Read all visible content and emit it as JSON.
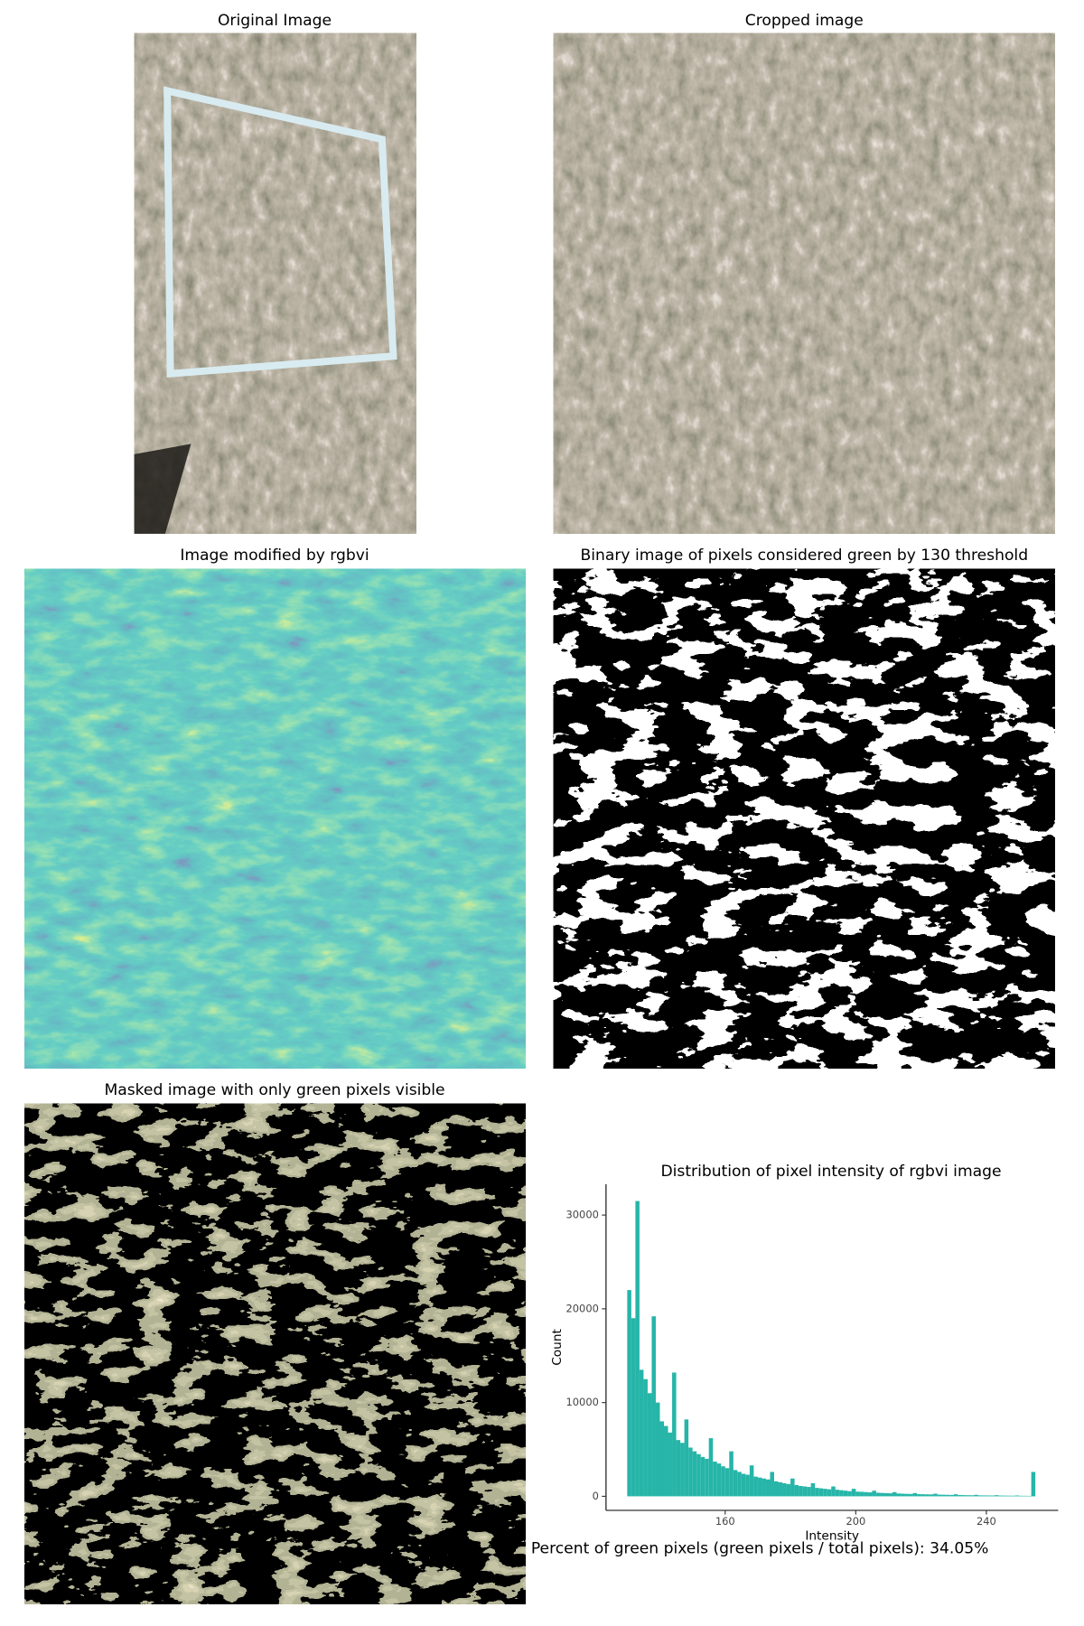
{
  "panels": [
    {
      "title": "Original Image"
    },
    {
      "title": "Cropped image"
    },
    {
      "title": "Image modified by rgbvi"
    },
    {
      "title": "Binary image of pixels considered green by 130 threshold"
    },
    {
      "title": "Masked image with only green pixels visible"
    }
  ],
  "chart_data": {
    "type": "histogram",
    "title": "Distribution of pixel intensity of rgbvi image",
    "x_label": "Intensity",
    "y_label": "Count",
    "color": "#26b5a8",
    "bins": [
      130,
      131.25,
      132.5,
      133.75,
      135,
      136.25,
      137.5,
      138.75,
      140,
      141.25,
      142.5,
      143.75,
      145,
      146.25,
      147.5,
      148.75,
      150,
      151.25,
      152.5,
      153.75,
      155,
      156.25,
      157.5,
      158.75,
      160,
      161.25,
      162.5,
      163.75,
      165,
      166.25,
      167.5,
      168.75,
      170,
      171.25,
      172.5,
      173.75,
      175,
      176.25,
      177.5,
      178.75,
      180,
      181.25,
      182.5,
      183.75,
      185,
      186.25,
      187.5,
      188.75,
      190,
      191.25,
      192.5,
      193.75,
      195,
      196.25,
      197.5,
      198.75,
      200,
      201.25,
      202.5,
      203.75,
      205,
      206.25,
      207.5,
      208.75,
      210,
      211.25,
      212.5,
      213.75,
      215,
      216.25,
      217.5,
      218.75,
      220,
      221.25,
      222.5,
      223.75,
      225,
      226.25,
      227.5,
      228.75,
      230,
      231.25,
      232.5,
      233.75,
      235,
      236.25,
      237.5,
      238.75,
      240,
      241.25,
      242.5,
      243.75,
      245,
      246.25,
      247.5,
      248.75,
      250,
      251.25,
      252.5,
      253.75,
      255
    ],
    "values": [
      22000,
      19000,
      31500,
      13500,
      12500,
      11000,
      19200,
      10000,
      8000,
      7500,
      6800,
      13200,
      6000,
      5700,
      8200,
      5200,
      4800,
      4500,
      4200,
      4000,
      6200,
      3700,
      3500,
      3200,
      3000,
      4800,
      2800,
      2600,
      2400,
      2300,
      3300,
      2100,
      2000,
      1900,
      1800,
      2600,
      1600,
      1500,
      1400,
      1300,
      1900,
      1200,
      1100,
      1050,
      1000,
      1400,
      900,
      850,
      800,
      750,
      1050,
      700,
      650,
      600,
      550,
      800,
      500,
      480,
      450,
      420,
      600,
      380,
      360,
      340,
      320,
      450,
      300,
      280,
      260,
      250,
      350,
      230,
      220,
      210,
      200,
      280,
      180,
      170,
      160,
      150,
      220,
      140,
      130,
      120,
      110,
      160,
      100,
      95,
      90,
      85,
      120,
      80,
      75,
      70,
      65,
      90,
      60,
      55,
      50,
      2600
    ],
    "xlim": [
      123.5,
      262
    ],
    "ylim": [
      -1500,
      33300
    ],
    "xticks": [
      160,
      200,
      240
    ],
    "yticks": [
      0,
      10000,
      20000,
      30000
    ]
  },
  "footer": "Percent of green pixels (green pixels / total pixels): 34.05%"
}
